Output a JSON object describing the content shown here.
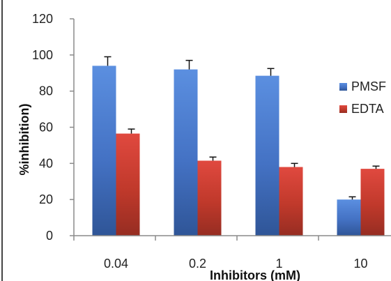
{
  "chart_data": {
    "type": "bar",
    "categories": [
      "0.04",
      "0.2",
      "1",
      "10"
    ],
    "series": [
      {
        "name": "PMSF",
        "values": [
          94,
          92,
          88.5,
          20
        ],
        "errors": [
          5,
          5,
          4,
          1.5
        ],
        "color": "#4472c4",
        "color_light": "#5b8fe0",
        "color_dark": "#2f5597"
      },
      {
        "name": "EDTA",
        "values": [
          56.5,
          41.5,
          38,
          37
        ],
        "errors": [
          2.5,
          2,
          2,
          1.5
        ],
        "color": "#c0392b",
        "color_light": "#e0493f",
        "color_dark": "#962d22"
      }
    ],
    "xlabel": "Inhibitors (mM)",
    "ylabel": "%inhibition)",
    "ylim": [
      0,
      120
    ],
    "yticks": [
      "0",
      "20",
      "40",
      "60",
      "80",
      "100",
      "120"
    ],
    "grid": false,
    "legend": "right"
  }
}
